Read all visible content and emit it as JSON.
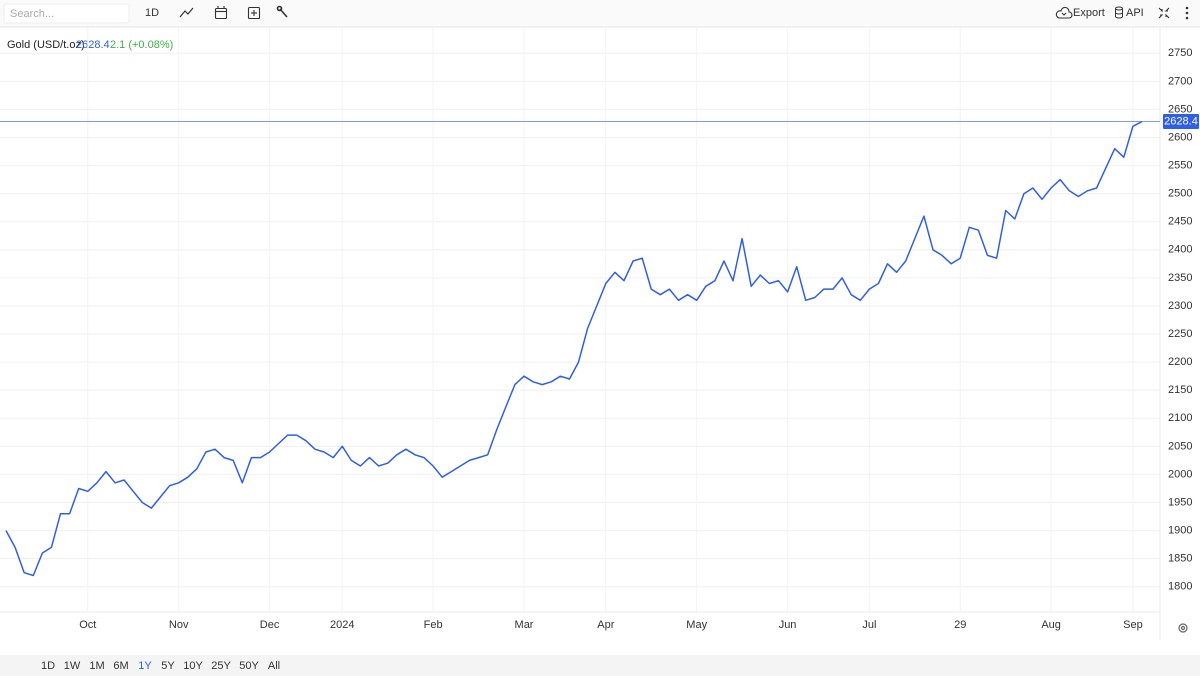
{
  "ui": {
    "search_placeholder": "Search...",
    "interval": "1D",
    "export": "Export",
    "api": "API",
    "ranges": [
      "1D",
      "1W",
      "1M",
      "6M",
      "1Y",
      "5Y",
      "10Y",
      "25Y",
      "50Y",
      "All"
    ],
    "active_range": 4
  },
  "chart_data": {
    "type": "line",
    "title": "Gold (USD/t.oz)",
    "last_price_label": "2628.4",
    "change": "2.1 (+0.08%)",
    "categories": [
      null,
      null,
      null,
      null,
      null,
      null,
      null,
      null,
      null,
      "Oct",
      null,
      null,
      null,
      null,
      null,
      null,
      null,
      null,
      null,
      "Nov",
      null,
      null,
      null,
      null,
      null,
      null,
      null,
      null,
      null,
      "Dec",
      null,
      null,
      null,
      null,
      null,
      null,
      null,
      "2024",
      null,
      null,
      null,
      null,
      null,
      null,
      null,
      null,
      null,
      "Feb",
      null,
      null,
      null,
      null,
      null,
      null,
      null,
      null,
      null,
      "Mar",
      null,
      null,
      null,
      null,
      null,
      null,
      null,
      null,
      "Apr",
      null,
      null,
      null,
      null,
      null,
      null,
      null,
      null,
      null,
      "May",
      null,
      null,
      null,
      null,
      null,
      null,
      null,
      null,
      null,
      "Jun",
      null,
      null,
      null,
      null,
      null,
      null,
      null,
      null,
      "Jul",
      null,
      null,
      null,
      null,
      null,
      null,
      null,
      null,
      null,
      "29",
      null,
      null,
      null,
      null,
      null,
      null,
      null,
      null,
      null,
      "Aug",
      null,
      null,
      null,
      null,
      null,
      null,
      null,
      null,
      "Sep",
      null
    ],
    "series": [
      {
        "name": "Gold (USD/t.oz)",
        "color": "#2f5fe6",
        "values": [
          1900,
          1870,
          1825,
          1820,
          1860,
          1870,
          1930,
          1930,
          1975,
          1970,
          1985,
          2005,
          1985,
          1990,
          1970,
          1950,
          1940,
          1960,
          1980,
          1985,
          1995,
          2010,
          2040,
          2045,
          2030,
          2025,
          1985,
          2030,
          2030,
          2040,
          2055,
          2070,
          2070,
          2060,
          2045,
          2040,
          2030,
          2050,
          2025,
          2015,
          2030,
          2015,
          2020,
          2035,
          2045,
          2035,
          2030,
          2015,
          1995,
          2005,
          2015,
          2025,
          2030,
          2035,
          2080,
          2120,
          2160,
          2175,
          2165,
          2160,
          2165,
          2175,
          2170,
          2200,
          2260,
          2300,
          2340,
          2360,
          2345,
          2380,
          2385,
          2330,
          2320,
          2330,
          2310,
          2320,
          2310,
          2335,
          2345,
          2380,
          2345,
          2420,
          2335,
          2355,
          2340,
          2345,
          2325,
          2370,
          2310,
          2315,
          2330,
          2330,
          2350,
          2320,
          2310,
          2330,
          2340,
          2375,
          2360,
          2380,
          2420,
          2460,
          2400,
          2390,
          2375,
          2385,
          2440,
          2435,
          2390,
          2385,
          2470,
          2455,
          2500,
          2510,
          2490,
          2510,
          2525,
          2505,
          2495,
          2505,
          2510,
          2545,
          2580,
          2565,
          2620,
          2628.4
        ]
      }
    ],
    "ylim": [
      1755,
      2795
    ],
    "yticks": [
      1800,
      1850,
      1900,
      1950,
      2000,
      2050,
      2100,
      2150,
      2200,
      2250,
      2300,
      2350,
      2400,
      2450,
      2500,
      2550,
      2600,
      2650,
      2700,
      2750
    ],
    "grid": true
  }
}
